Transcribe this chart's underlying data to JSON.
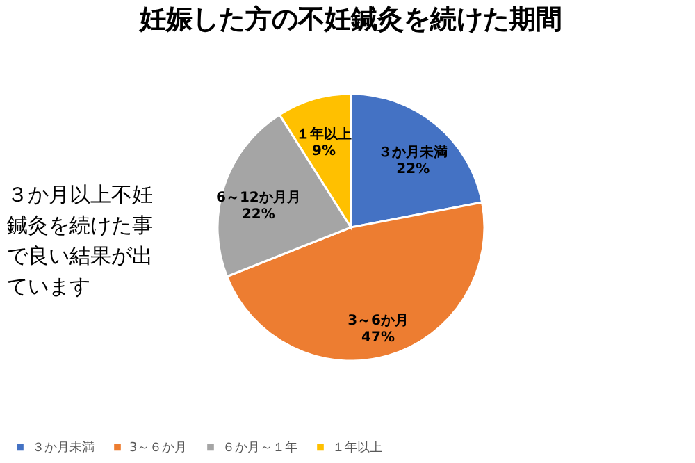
{
  "chart_data": {
    "type": "pie",
    "title": "妊娠した方の不妊鍼灸を続けた期間",
    "categories": [
      "３か月未満",
      "3～６か月",
      "６か月～１年",
      "１年以上"
    ],
    "values": [
      22,
      47,
      22,
      9
    ],
    "colors": [
      "#4472c4",
      "#ed7d31",
      "#a5a5a5",
      "#ffc000"
    ],
    "value_labels": [
      "22%",
      "47%",
      "22%",
      "9%"
    ],
    "annotations": [
      {
        "text": "３か月未満",
        "x": "３か月未満"
      },
      {
        "text": "3～6か月",
        "x": "3～６か月"
      },
      {
        "text": "6～12か月月",
        "x": "６か月～１年"
      },
      {
        "text": "１年以上",
        "x": "１年以上"
      },
      "３か月以上不妊",
      "鍼灸を続けた事",
      "で良い結果が出",
      "ています"
    ],
    "legend": "bottom"
  }
}
